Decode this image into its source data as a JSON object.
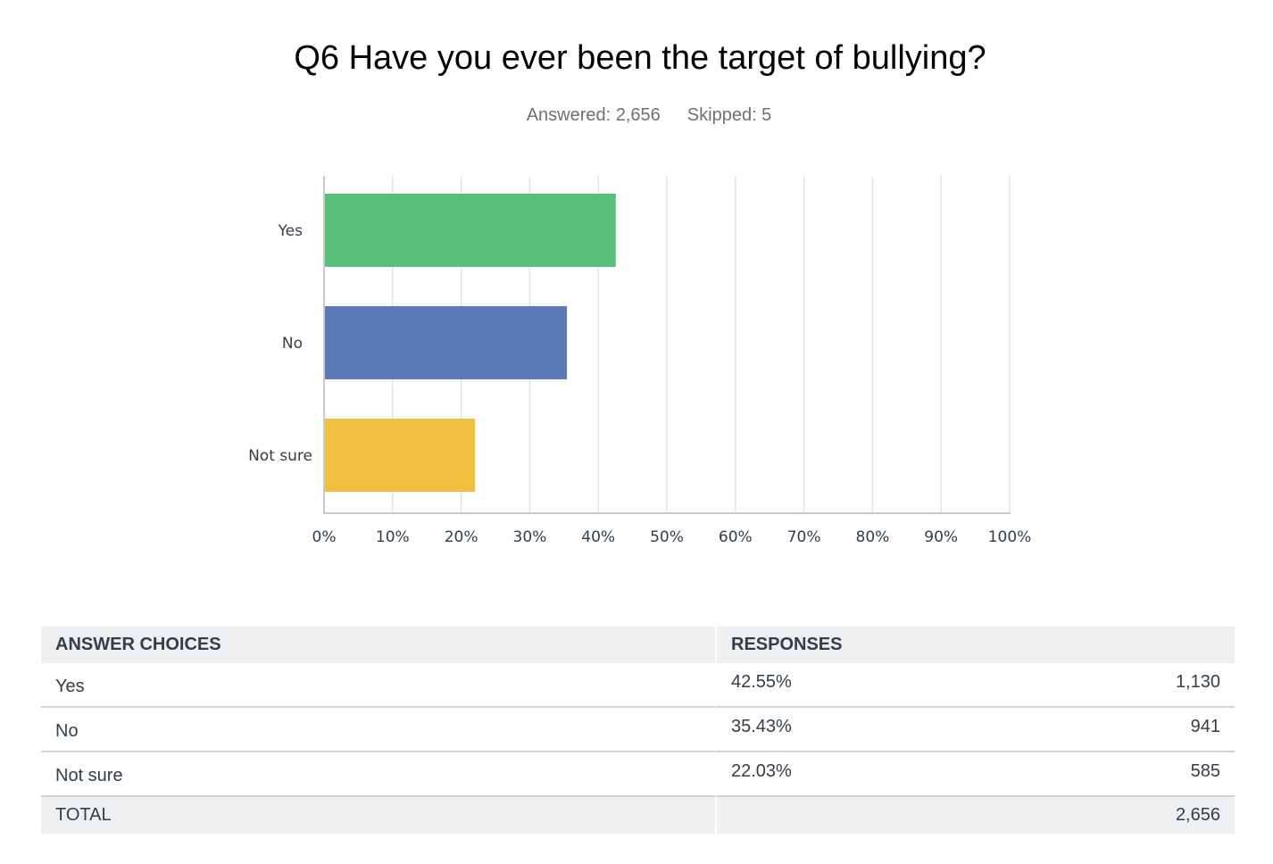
{
  "question": {
    "title": "Q6 Have you ever been the target of bullying?",
    "answered": "Answered: 2,656",
    "skipped": "Skipped: 5"
  },
  "chart_data": {
    "type": "bar",
    "orientation": "horizontal",
    "categories": [
      "Yes",
      "No",
      "Not sure"
    ],
    "values": [
      42.55,
      35.43,
      22.03
    ],
    "colors": [
      "#57bf77",
      "#5b7ab3",
      "#efc13e"
    ],
    "xlim": [
      0,
      100
    ],
    "x_ticks": [
      "0%",
      "10%",
      "20%",
      "30%",
      "40%",
      "50%",
      "60%",
      "70%",
      "80%",
      "90%",
      "100%"
    ],
    "grid": "vertical",
    "title": "",
    "xlabel": "",
    "ylabel": ""
  },
  "table": {
    "headers": [
      "ANSWER CHOICES",
      "RESPONSES"
    ],
    "rows": [
      {
        "choice": "Yes",
        "percent": "42.55%",
        "count": "1,130"
      },
      {
        "choice": "No",
        "percent": "35.43%",
        "count": "941"
      },
      {
        "choice": "Not sure",
        "percent": "22.03%",
        "count": "585"
      }
    ],
    "total": {
      "label": "TOTAL",
      "count": "2,656"
    }
  }
}
